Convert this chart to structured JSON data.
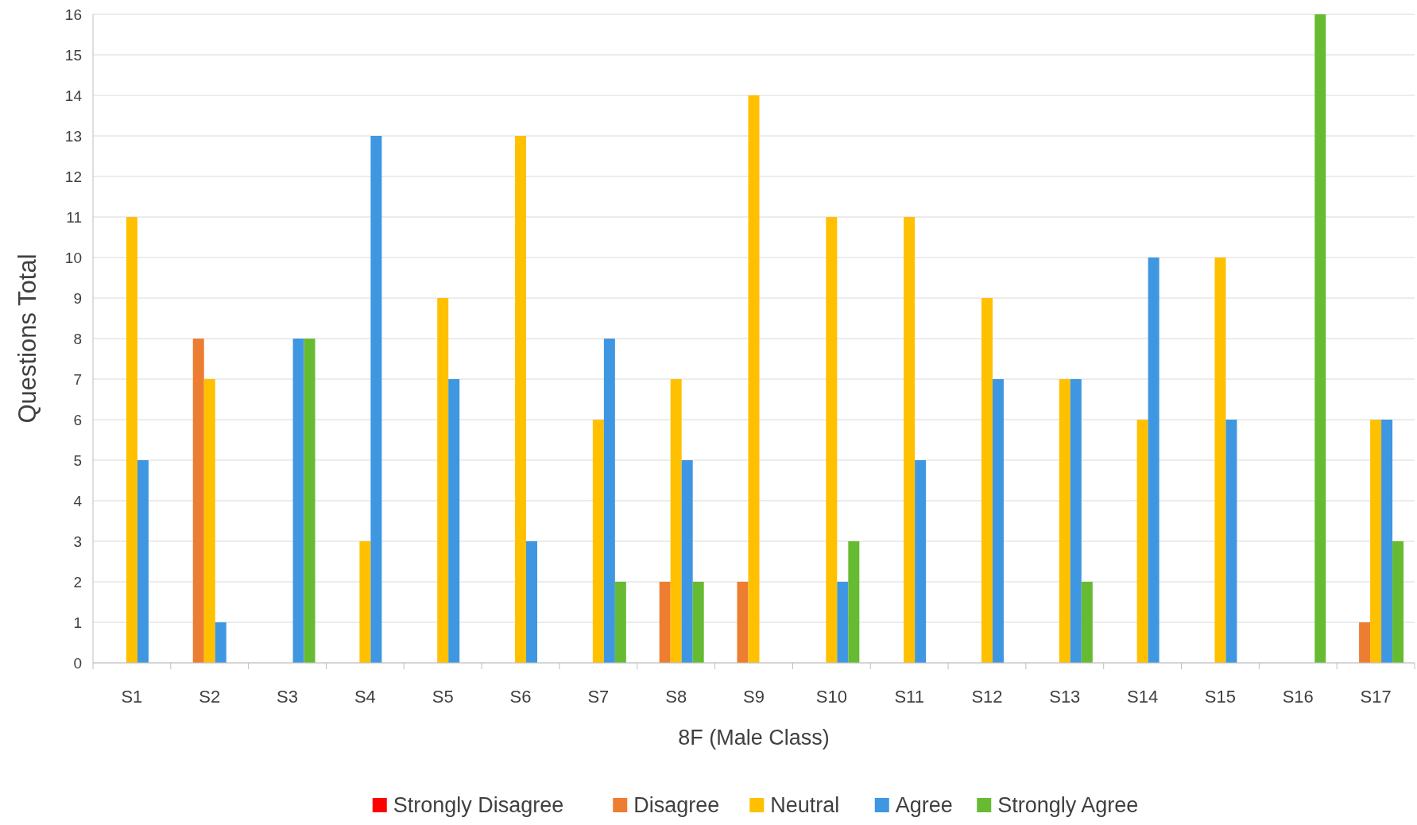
{
  "chart_data": {
    "type": "bar",
    "xlabel": "8F (Male Class)",
    "ylabel": "Questions Total",
    "categories": [
      "S1",
      "S2",
      "S3",
      "S4",
      "S5",
      "S6",
      "S7",
      "S8",
      "S9",
      "S10",
      "S11",
      "S12",
      "S13",
      "S14",
      "S15",
      "S16",
      "S17"
    ],
    "series": [
      {
        "name": "Strongly Disagree",
        "color": "#ff0000",
        "values": [
          0,
          0,
          0,
          0,
          0,
          0,
          0,
          0,
          0,
          0,
          0,
          0,
          0,
          0,
          0,
          0,
          0
        ]
      },
      {
        "name": "Disagree",
        "color": "#ed7d31",
        "values": [
          0,
          8,
          0,
          0,
          0,
          0,
          0,
          2,
          2,
          0,
          0,
          0,
          0,
          0,
          0,
          0,
          1
        ]
      },
      {
        "name": "Neutral",
        "color": "#ffc000",
        "values": [
          11,
          7,
          0,
          3,
          9,
          13,
          6,
          7,
          14,
          11,
          11,
          9,
          7,
          6,
          10,
          0,
          6
        ]
      },
      {
        "name": "Agree",
        "color": "#3f97e2",
        "values": [
          5,
          1,
          8,
          13,
          7,
          3,
          8,
          5,
          0,
          2,
          5,
          7,
          7,
          10,
          6,
          0,
          6
        ]
      },
      {
        "name": "Strongly Agree",
        "color": "#66bb33",
        "values": [
          0,
          0,
          8,
          0,
          0,
          0,
          2,
          2,
          0,
          3,
          0,
          0,
          2,
          0,
          0,
          16,
          3
        ]
      }
    ],
    "ylim": [
      0,
      16
    ],
    "yticks": [
      0,
      1,
      2,
      3,
      4,
      5,
      6,
      7,
      8,
      9,
      10,
      11,
      12,
      13,
      14,
      15,
      16
    ],
    "grid": "y",
    "legend": "bottom"
  }
}
